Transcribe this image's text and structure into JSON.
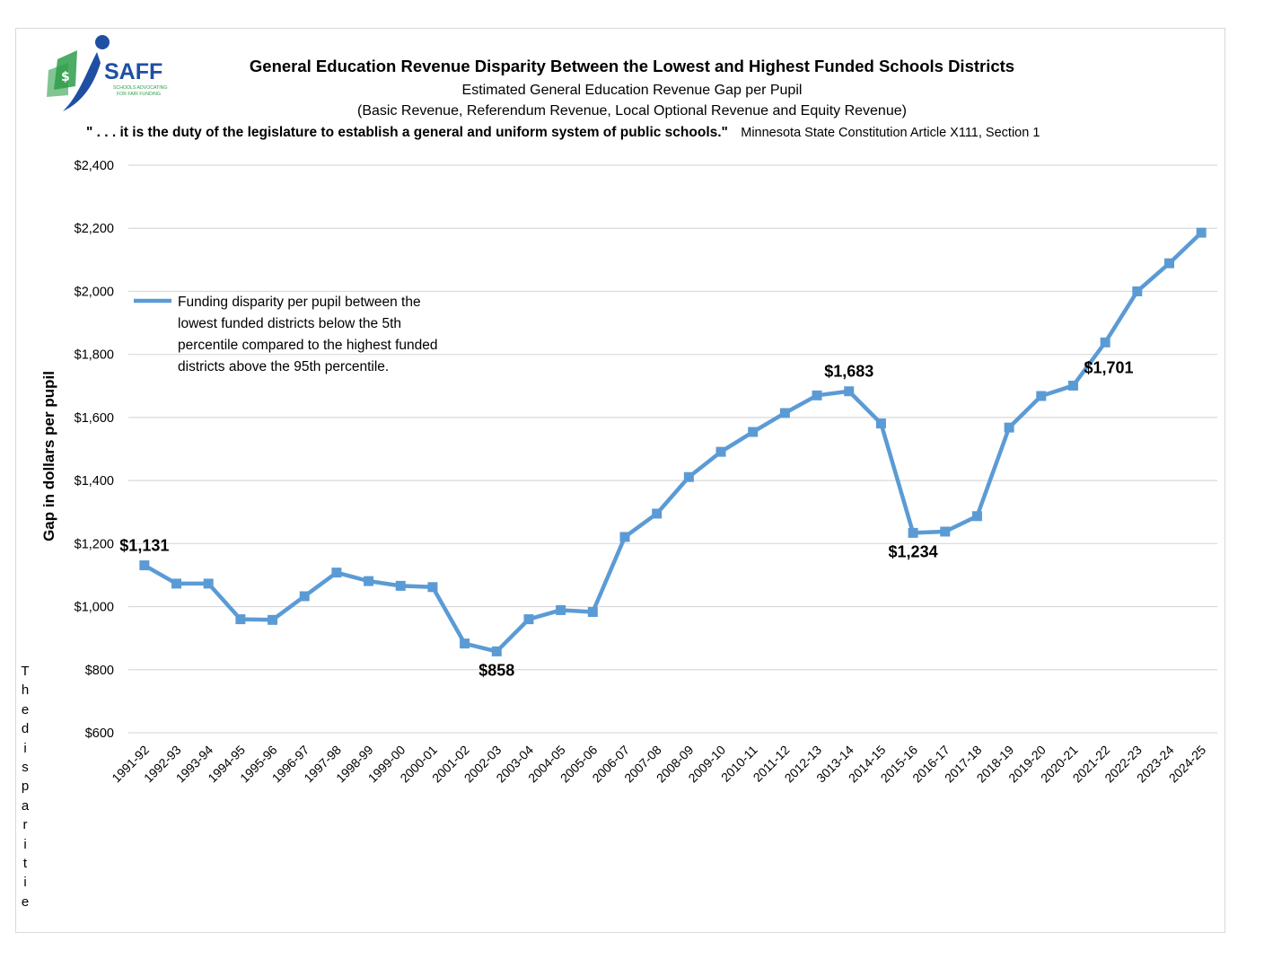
{
  "header": {
    "title": "General Education Revenue Disparity Between the Lowest and Highest Funded Schools Districts",
    "subtitle": "Estimated General Education Revenue Gap per Pupil",
    "subtitle2": "(Basic Revenue, Referendum Revenue, Local Optional Revenue and Equity Revenue)",
    "quote": "\" . . . it is the duty of the legislature to establish a general and uniform system of public schools.\"",
    "quote_source": "Minnesota State Constitution Article X111, Section 1"
  },
  "logo": {
    "name": "SAFF",
    "tagline_1": "SCHOOLS ADVOCATING",
    "tagline_2": "FOR FAIR FUNDING",
    "colors": {
      "blue": "#1f4fa3",
      "green": "#2e9e4a"
    }
  },
  "side_note": "Thedisparitie",
  "chart_data": {
    "type": "line",
    "ylabel": "Gap in dollars per pupil",
    "xlabel": "",
    "ylim": [
      600,
      2400
    ],
    "yticks": [
      600,
      800,
      1000,
      1200,
      1400,
      1600,
      1800,
      2000,
      2200,
      2400
    ],
    "ytick_labels": [
      "$600",
      "$800",
      "$1,000",
      "$1,200",
      "$1,400",
      "$1,600",
      "$1,800",
      "$2,000",
      "$2,200",
      "$2,400"
    ],
    "grid": true,
    "legend_position": "top-left",
    "categories": [
      "1991-92",
      "1992-93",
      "1993-94",
      "1994-95",
      "1995-96",
      "1996-97",
      "1997-98",
      "1998-99",
      "1999-00",
      "2000-01",
      "2001-02",
      "2002-03",
      "2003-04",
      "2004-05",
      "2005-06",
      "2006-07",
      "2007-08",
      "2008-09",
      "2009-10",
      "2010-11",
      "2011-12",
      "2012-13",
      "3013-14",
      "2014-15",
      "2015-16",
      "2016-17",
      "2017-18",
      "2018-19",
      "2019-20",
      "2020-21",
      "2021-22",
      "2022-23",
      "2023-24",
      "2024-25"
    ],
    "series": [
      {
        "name": "Funding disparity per pupil between the lowest funded districts below the 5th percentile compared to the highest funded districts above the 95th percentile.",
        "name_lines": [
          "Funding disparity per pupil between the",
          "lowest funded districts below the 5th",
          "percentile compared to the highest funded",
          "districts above the 95th percentile."
        ],
        "color": "#5b9bd5",
        "values": [
          1131,
          1073,
          1073,
          960,
          958,
          1033,
          1108,
          1081,
          1066,
          1062,
          883,
          858,
          960,
          989,
          983,
          1221,
          1295,
          1411,
          1491,
          1554,
          1614,
          1670,
          1683,
          1581,
          1234,
          1238,
          1287,
          1568,
          1668,
          1701,
          1838,
          2000,
          2089,
          2186
        ]
      }
    ],
    "annotations": [
      {
        "index": 0,
        "text": "$1,131",
        "position": "above"
      },
      {
        "index": 11,
        "text": "$858",
        "position": "below"
      },
      {
        "index": 22,
        "text": "$1,683",
        "position": "above"
      },
      {
        "index": 24,
        "text": "$1,234",
        "position": "below"
      },
      {
        "index": 29,
        "text": "$1,701",
        "position": "above-right"
      }
    ]
  }
}
